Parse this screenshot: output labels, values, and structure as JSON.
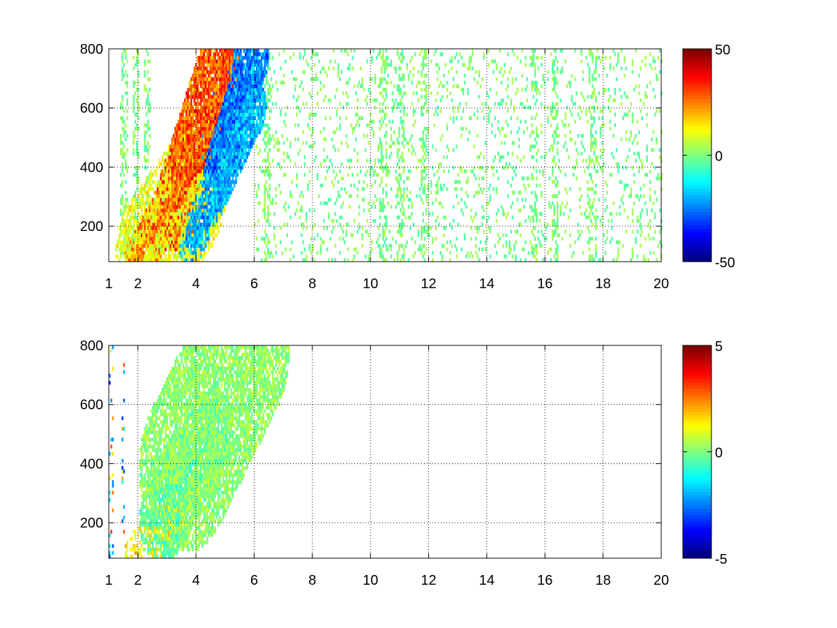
{
  "colormap": "jet",
  "chart_data": [
    {
      "type": "heatmap",
      "title": "",
      "xlabel": "",
      "ylabel": "",
      "xlim": [
        1,
        20
      ],
      "ylim": [
        80,
        800
      ],
      "x_ticks": [
        1,
        2,
        4,
        6,
        8,
        10,
        12,
        14,
        16,
        18,
        20
      ],
      "x_tick_labels": [
        "1",
        "2",
        "4",
        "6",
        "8",
        "10",
        "12",
        "14",
        "16",
        "18",
        "20"
      ],
      "y_ticks": [
        200,
        400,
        600,
        800
      ],
      "y_tick_labels": [
        "200",
        "400",
        "600",
        "800"
      ],
      "grid": true,
      "colorbar": {
        "clim": [
          -50,
          50
        ],
        "ticks": [
          -50,
          0,
          50
        ],
        "tick_labels": [
          "-50",
          "0",
          "50"
        ]
      },
      "features": [
        {
          "kind": "band",
          "from": [
            2.0,
            80
          ],
          "to": [
            3.6,
            350
          ],
          "width": 0.5,
          "value": 28,
          "density": 0.95
        },
        {
          "kind": "band",
          "from": [
            3.3,
            250
          ],
          "to": [
            4.8,
            720
          ],
          "width": 0.8,
          "value": 32,
          "density": 0.95
        },
        {
          "kind": "band",
          "from": [
            3.8,
            180
          ],
          "to": [
            5.8,
            600
          ],
          "width": 0.6,
          "value": -22,
          "density": 0.9
        },
        {
          "kind": "band",
          "from": [
            4.6,
            400
          ],
          "to": [
            5.8,
            780
          ],
          "width": 0.7,
          "value": -28,
          "density": 0.9
        },
        {
          "kind": "band",
          "from": [
            2.4,
            100
          ],
          "to": [
            3.8,
            300
          ],
          "width": 1.2,
          "value": 12,
          "density": 0.6
        },
        {
          "kind": "columns",
          "x": [
            1.5,
            1.9,
            2.3,
            6.4,
            10.4,
            11.0,
            11.8,
            15.6,
            16.3,
            17.6
          ],
          "value": 5,
          "density": 0.35,
          "width": 0.12
        },
        {
          "kind": "scatter",
          "xrange": [
            6,
            20
          ],
          "yrange": [
            80,
            800
          ],
          "value": 5,
          "density": 0.12
        }
      ]
    },
    {
      "type": "heatmap",
      "title": "",
      "xlabel": "",
      "ylabel": "",
      "xlim": [
        1,
        20
      ],
      "ylim": [
        80,
        800
      ],
      "x_ticks": [
        1,
        2,
        4,
        6,
        8,
        10,
        12,
        14,
        16,
        18,
        20
      ],
      "x_tick_labels": [
        "1",
        "2",
        "4",
        "6",
        "8",
        "10",
        "12",
        "14",
        "16",
        "18",
        "20"
      ],
      "y_ticks": [
        200,
        400,
        600,
        800
      ],
      "y_tick_labels": [
        "200",
        "400",
        "600",
        "800"
      ],
      "grid": true,
      "colorbar": {
        "clim": [
          -5,
          5
        ],
        "ticks": [
          -5,
          0,
          5
        ],
        "tick_labels": [
          "-5",
          "0",
          "5"
        ]
      },
      "features": [
        {
          "kind": "band",
          "from": [
            2.0,
            80
          ],
          "to": [
            3.3,
            230
          ],
          "width": 0.5,
          "value": 1.5,
          "density": 0.35
        },
        {
          "kind": "band",
          "from": [
            2.8,
            200
          ],
          "to": [
            4.4,
            500
          ],
          "width": 0.8,
          "value": -0.3,
          "density": 0.75
        },
        {
          "kind": "band",
          "from": [
            3.6,
            380
          ],
          "to": [
            5.6,
            780
          ],
          "width": 1.6,
          "value": 0.2,
          "density": 0.8
        },
        {
          "kind": "columns",
          "x": [
            1.05,
            1.45
          ],
          "value": -3.5,
          "density": 0.12,
          "width": 0.06
        }
      ]
    }
  ]
}
